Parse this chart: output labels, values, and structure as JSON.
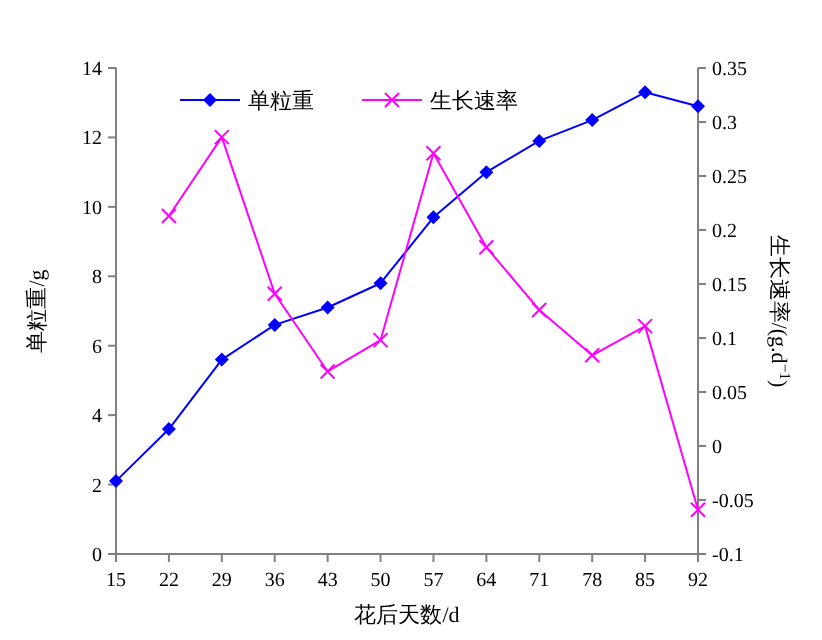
{
  "chart_data": {
    "type": "line",
    "xlabel": "花后天数/d",
    "ylabel": "单粒重/g",
    "y2label": "生长速率/(g.d$^{−1}$)",
    "xlim": [
      15,
      92
    ],
    "xticks": [
      15,
      22,
      29,
      36,
      43,
      50,
      57,
      64,
      71,
      78,
      85,
      92
    ],
    "ylim": [
      0,
      14
    ],
    "yticks": [
      0,
      2,
      4,
      6,
      8,
      10,
      12,
      14
    ],
    "y2lim": [
      -0.1,
      0.35
    ],
    "y2ticks": [
      -0.1,
      -0.05,
      0,
      0.05,
      0.1,
      0.15,
      0.2,
      0.25,
      0.3,
      0.35
    ],
    "grid": false,
    "legend": "top",
    "line_style": "solid",
    "series": [
      {
        "name": "单粒重",
        "color": "#0000ff",
        "marker": "diamond",
        "x": [
          15,
          22,
          29,
          36,
          43,
          50,
          57,
          64,
          71,
          78,
          85,
          92
        ],
        "values": [
          2.1,
          3.6,
          5.6,
          6.6,
          7.1,
          7.8,
          9.7,
          11.0,
          11.9,
          12.5,
          13.3,
          12.9
        ]
      },
      {
        "name": "生长速率",
        "color": "#ff00ff",
        "marker": "cross",
        "axis": "y2",
        "x": [
          22,
          29,
          36,
          43,
          50,
          57,
          64,
          71,
          78,
          85,
          92
        ],
        "values": [
          0.213,
          0.286,
          0.141,
          0.069,
          0.098,
          0.271,
          0.184,
          0.126,
          0.084,
          0.111,
          -0.059
        ]
      }
    ]
  }
}
